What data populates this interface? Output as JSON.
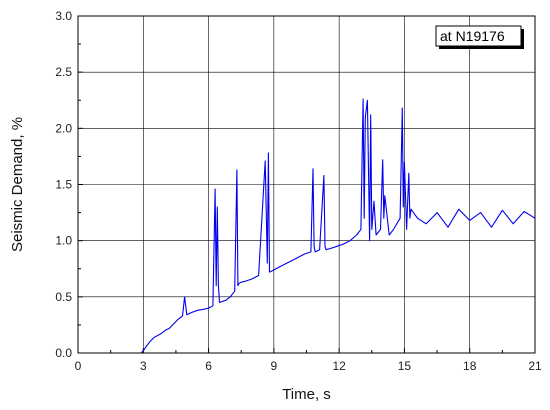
{
  "chart_data": {
    "type": "line",
    "title": "",
    "xlabel": "Time, s",
    "ylabel": "Seismic Demand, %",
    "xlim": [
      0,
      21
    ],
    "ylim": [
      0,
      3.0
    ],
    "x_ticks": [
      0,
      3,
      6,
      9,
      12,
      15,
      18,
      21
    ],
    "x_tick_labels": [
      "0",
      "3",
      "6",
      "9",
      "12",
      "15",
      "18",
      "21"
    ],
    "y_ticks": [
      0,
      0.5,
      1.0,
      1.5,
      2.0,
      2.5,
      3.0
    ],
    "y_tick_labels": [
      "0.0",
      "0.5",
      "1.0",
      "1.5",
      "2.0",
      "2.5",
      "3.0"
    ],
    "grid": true,
    "line_color": "#0000ee",
    "annotation": "at N19176",
    "series": [
      {
        "x": [
          0,
          2.9,
          3.0,
          3.1,
          3.3,
          3.5,
          3.8,
          4.0,
          4.2,
          4.4,
          4.6,
          4.8,
          4.9,
          5.0,
          5.2,
          5.5,
          5.8,
          6.0,
          6.2,
          6.3,
          6.35,
          6.4,
          6.45,
          6.5,
          6.8,
          7.0,
          7.2,
          7.3,
          7.35,
          7.4,
          7.5,
          7.7,
          8.0,
          8.3,
          8.6,
          8.7,
          8.75,
          8.8,
          8.9,
          9.2,
          9.5,
          9.8,
          10.1,
          10.4,
          10.7,
          10.8,
          10.85,
          10.9,
          11.1,
          11.3,
          11.35,
          11.4,
          11.6,
          11.9,
          12.2,
          12.5,
          12.8,
          13.0,
          13.1,
          13.15,
          13.2,
          13.3,
          13.4,
          13.45,
          13.5,
          13.6,
          13.7,
          13.9,
          14.0,
          14.05,
          14.1,
          14.3,
          14.5,
          14.8,
          14.9,
          14.95,
          15.0,
          15.1,
          15.2,
          15.25,
          15.3,
          15.6,
          16.0,
          16.5,
          17.0,
          17.5,
          18.0,
          18.5,
          19.0,
          19.5,
          20.0,
          20.5,
          21.0
        ],
        "y": [
          0.0,
          0.0,
          0.02,
          0.05,
          0.1,
          0.14,
          0.17,
          0.2,
          0.22,
          0.26,
          0.3,
          0.33,
          0.5,
          0.34,
          0.36,
          0.38,
          0.39,
          0.4,
          0.42,
          1.46,
          0.6,
          1.3,
          0.6,
          0.45,
          0.47,
          0.5,
          0.55,
          1.63,
          0.6,
          0.62,
          0.63,
          0.64,
          0.66,
          0.69,
          1.71,
          0.8,
          1.78,
          0.72,
          0.73,
          0.76,
          0.79,
          0.82,
          0.85,
          0.88,
          0.9,
          1.64,
          0.95,
          0.9,
          0.92,
          1.58,
          0.95,
          0.92,
          0.93,
          0.95,
          0.97,
          1.0,
          1.05,
          1.1,
          2.26,
          1.2,
          2.1,
          2.25,
          1.0,
          2.12,
          1.1,
          1.35,
          1.05,
          1.1,
          1.72,
          1.2,
          1.4,
          1.05,
          1.1,
          1.2,
          2.18,
          1.3,
          1.7,
          1.1,
          1.6,
          1.2,
          1.28,
          1.2,
          1.15,
          1.25,
          1.12,
          1.28,
          1.18,
          1.25,
          1.12,
          1.27,
          1.15,
          1.26,
          1.2
        ]
      }
    ]
  }
}
